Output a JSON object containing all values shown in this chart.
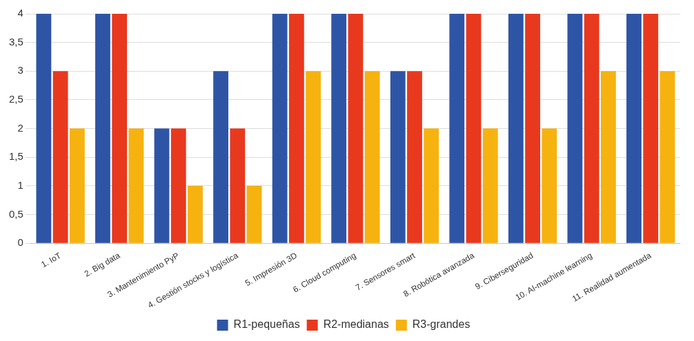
{
  "chart_data": {
    "type": "bar",
    "categories": [
      "1. IoT",
      "2. Big data",
      "3. Mantenimiento PyP",
      "4. Gestión stocks y logística",
      "5. Impresión 3D",
      "6. Cloud computing",
      "7. Sensores smart",
      "8. Robótica avanzada",
      "9. Ciberseguridad",
      "10. AI-machine learning",
      "11. Realidad aumentada"
    ],
    "series": [
      {
        "name": "R1-pequeñas",
        "color": "#2e55a5",
        "values": [
          4,
          4,
          2,
          3,
          4,
          4,
          3,
          4,
          4,
          4,
          4
        ]
      },
      {
        "name": "R2-medianas",
        "color": "#e8391e",
        "values": [
          3,
          4,
          2,
          2,
          4,
          4,
          3,
          4,
          4,
          4,
          4
        ]
      },
      {
        "name": "R3-grandes",
        "color": "#f6b20f",
        "values": [
          2,
          2,
          1,
          1,
          3,
          3,
          2,
          2,
          2,
          3,
          3
        ]
      }
    ],
    "ylim": [
      0,
      4
    ],
    "yticks": [
      0,
      {
        "value": 0.5,
        "label": "0,5"
      },
      1,
      {
        "value": 1.5,
        "label": "1,5"
      },
      2,
      {
        "value": 2.5,
        "label": "2,5"
      },
      3,
      {
        "value": 3.5,
        "label": "3,5"
      },
      4
    ],
    "grid": "y",
    "legend": "bottom"
  }
}
